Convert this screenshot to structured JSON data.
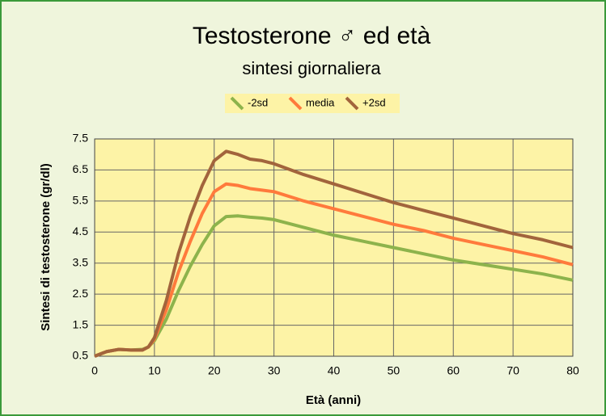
{
  "chart_data": {
    "type": "line",
    "title": "Testosterone ♂ ed età",
    "subtitle": "sintesi giornaliera",
    "x_label": "Età (anni)",
    "y_label": "Sintesi di testosterone (gr/dl)",
    "x": [
      0,
      2,
      4,
      6,
      8,
      9,
      10,
      12,
      14,
      16,
      18,
      20,
      22,
      24,
      26,
      28,
      30,
      35,
      40,
      45,
      50,
      55,
      60,
      65,
      70,
      75,
      80
    ],
    "series": [
      {
        "name": "-2sd",
        "color": "#8db34c",
        "values": [
          0.5,
          0.65,
          0.72,
          0.7,
          0.72,
          0.8,
          1.0,
          1.7,
          2.6,
          3.4,
          4.1,
          4.7,
          5.0,
          5.02,
          4.98,
          4.95,
          4.9,
          4.65,
          4.4,
          4.2,
          4.0,
          3.8,
          3.6,
          3.45,
          3.3,
          3.15,
          2.95
        ]
      },
      {
        "name": "media",
        "color": "#ff7a3c",
        "values": [
          0.5,
          0.65,
          0.72,
          0.7,
          0.7,
          0.8,
          1.05,
          2.0,
          3.2,
          4.2,
          5.1,
          5.8,
          6.05,
          6.0,
          5.9,
          5.85,
          5.8,
          5.5,
          5.25,
          5.0,
          4.75,
          4.55,
          4.3,
          4.1,
          3.9,
          3.7,
          3.45
        ]
      },
      {
        "name": "+2sd",
        "color": "#a2643c",
        "values": [
          0.5,
          0.65,
          0.72,
          0.7,
          0.7,
          0.8,
          1.1,
          2.3,
          3.8,
          5.0,
          6.0,
          6.8,
          7.1,
          7.0,
          6.85,
          6.8,
          6.7,
          6.35,
          6.05,
          5.75,
          5.45,
          5.2,
          4.95,
          4.7,
          4.45,
          4.25,
          4.0
        ]
      }
    ],
    "xlim": [
      0,
      80
    ],
    "xticks": [
      0,
      10,
      20,
      30,
      40,
      50,
      60,
      70,
      80
    ],
    "ylim": [
      0.5,
      7.5
    ],
    "yticks": [
      0.5,
      1.5,
      2.5,
      3.5,
      4.5,
      5.5,
      6.5,
      7.5
    ],
    "grid": true,
    "legend": "top"
  }
}
